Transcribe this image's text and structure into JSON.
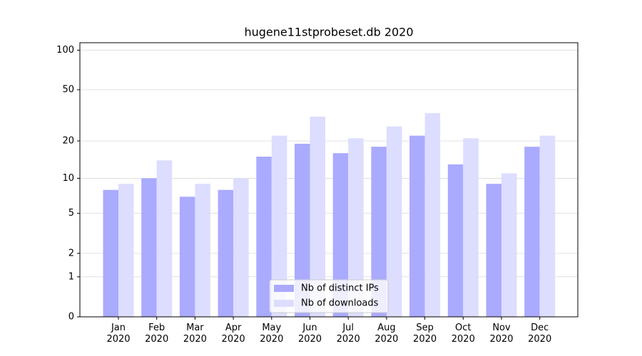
{
  "chart_data": {
    "type": "bar",
    "title": "hugene11stprobeset.db 2020",
    "categories": [
      "Jan 2020",
      "Feb 2020",
      "Mar 2020",
      "Apr 2020",
      "May 2020",
      "Jun 2020",
      "Jul 2020",
      "Aug 2020",
      "Sep 2020",
      "Oct 2020",
      "Nov 2020",
      "Dec 2020"
    ],
    "series": [
      {
        "name": "Nb of distinct IPs",
        "color": "#aaaaff",
        "values": [
          8,
          10,
          7,
          8,
          15,
          19,
          16,
          18,
          22,
          13,
          9,
          18
        ]
      },
      {
        "name": "Nb of downloads",
        "color": "#ddddff",
        "values": [
          9,
          14,
          9,
          10,
          22,
          31,
          21,
          26,
          33,
          21,
          11,
          22
        ]
      }
    ],
    "yscale": "log1p",
    "ylim": [
      0,
      114
    ],
    "yticks": [
      0,
      1,
      2,
      5,
      10,
      20,
      50,
      100
    ],
    "grid": true,
    "legend": "lower center"
  }
}
